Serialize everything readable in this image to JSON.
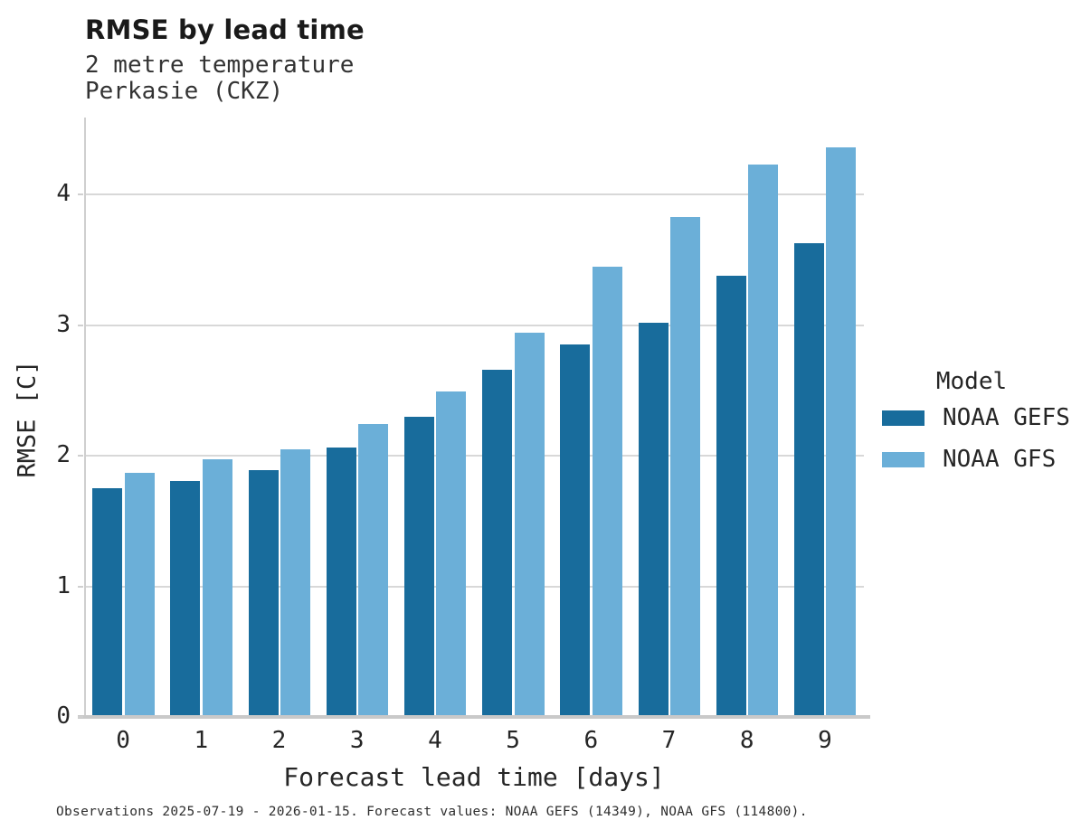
{
  "header": {
    "title": "RMSE by lead time",
    "subtitle_line1": "2 metre temperature",
    "subtitle_line2": "Perkasie (CKZ)"
  },
  "chart_data": {
    "type": "bar",
    "title": "RMSE by lead time",
    "subtitle": [
      "2 metre temperature",
      "Perkasie (CKZ)"
    ],
    "categories": [
      "0",
      "1",
      "2",
      "3",
      "4",
      "5",
      "6",
      "7",
      "8",
      "9"
    ],
    "series": [
      {
        "name": "NOAA GEFS",
        "color": "#186C9C",
        "values": [
          1.75,
          1.81,
          1.89,
          2.06,
          2.3,
          2.66,
          2.85,
          3.02,
          3.38,
          3.63
        ]
      },
      {
        "name": "NOAA GFS",
        "color": "#6BAFD8",
        "values": [
          1.87,
          1.97,
          2.05,
          2.24,
          2.49,
          2.94,
          3.45,
          3.83,
          4.23,
          4.36
        ]
      }
    ],
    "xlabel": "Forecast lead time [days]",
    "ylabel": "RMSE [C]",
    "ylim": [
      0,
      4.59
    ],
    "yticks": [
      0,
      1,
      2,
      3,
      4
    ],
    "grid": "horizontal",
    "legend_title": "Model",
    "legend_position": "right-outside"
  },
  "legend": {
    "title": "Model",
    "items": [
      {
        "label": "NOAA GEFS",
        "color": "#186C9C"
      },
      {
        "label": "NOAA GFS",
        "color": "#6BAFD8"
      }
    ]
  },
  "footer": {
    "note": "Observations 2025-07-19 - 2026-01-15. Forecast values: NOAA GEFS (14349), NOAA GFS (114800)."
  },
  "colors": {
    "bar_dark": "#186C9C",
    "bar_light": "#6BAFD8",
    "gridline": "#d8d8d8",
    "spine": "#cfcfcf",
    "text": "#262626",
    "background": "#ffffff"
  }
}
